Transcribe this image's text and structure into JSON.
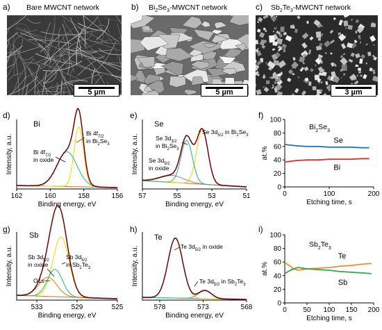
{
  "figure": {
    "panels": [
      {
        "letter": "a)",
        "title_parts": [
          "Bare MWCNT network"
        ],
        "scale": "5 µm"
      },
      {
        "letter": "b)",
        "title_parts": [
          "Bi",
          "2",
          "Se",
          "3",
          "-MWCNT network"
        ],
        "scale": "5 µm"
      },
      {
        "letter": "c)",
        "title_parts": [
          "Sb",
          "2",
          "Te",
          "3",
          "-MWCNT network"
        ],
        "scale": "3 µm"
      }
    ]
  },
  "chart_data": [
    {
      "id": "d",
      "type": "line",
      "letter": "d)",
      "element": "Bi",
      "xlabel": "Binding energy, eV",
      "ylabel": "Intensity, a.u.",
      "xlim": [
        162,
        156
      ],
      "xticks": [
        162,
        160,
        158,
        156
      ],
      "annotations": [
        [
          "Bi 4f",
          "7/2",
          ""
        ],
        [
          "in Bi",
          "2",
          "Se",
          "3"
        ],
        [
          "Bi 4f",
          "7/2",
          ""
        ],
        [
          "in oxide"
        ]
      ],
      "peaks": [
        {
          "center": 158.3,
          "height": 0.86,
          "width": 0.28,
          "color": "#e8d800"
        },
        {
          "center": 159.0,
          "height": 0.5,
          "width": 0.6,
          "color": "#22b08c"
        }
      ],
      "background": {
        "left": 0.05,
        "right": 0.02,
        "color": "#c9732c"
      }
    },
    {
      "id": "e",
      "type": "line",
      "letter": "e)",
      "element": "Se",
      "xlabel": "Binding energy, eV",
      "ylabel": "Intensity, a.u.",
      "xlim": [
        57,
        51
      ],
      "xticks": [
        57,
        55,
        53,
        51
      ],
      "annotations": [
        [
          "Se 3d",
          "3/2",
          ""
        ],
        [
          "in Bi",
          "2",
          "Se",
          "3"
        ],
        [
          "Se 3d",
          "5/2",
          ""
        ],
        [
          "in oxide"
        ],
        [
          "Se 3d",
          "5/2",
          " in Bi",
          "2",
          "Se",
          "3"
        ]
      ],
      "peaks": [
        {
          "center": 53.55,
          "height": 0.78,
          "width": 0.33,
          "color": "#e8d800"
        },
        {
          "center": 54.45,
          "height": 0.62,
          "width": 0.33,
          "color": "#22b08c"
        },
        {
          "center": 55.3,
          "height": 0.1,
          "width": 0.7,
          "color": "#7a8a8a"
        }
      ],
      "background": {
        "left": 0.12,
        "right": 0.03,
        "color": "#c9732c"
      }
    },
    {
      "id": "f",
      "type": "line",
      "letter": "f)",
      "title": [
        "Bi",
        "2",
        "Se",
        "3"
      ],
      "xlabel": "Etching time, s",
      "ylabel": "at.%",
      "xlim": [
        0,
        200
      ],
      "ylim": [
        0,
        100
      ],
      "xticks": [
        0,
        100,
        200
      ],
      "yticks": [
        0,
        20,
        40,
        60,
        80,
        100
      ],
      "series": [
        {
          "name": "Se",
          "color": "#1f77c4",
          "x": [
            0,
            25,
            50,
            75,
            100,
            125,
            150,
            175,
            190
          ],
          "y": [
            63,
            61,
            60,
            60,
            59,
            59,
            59,
            58,
            58
          ]
        },
        {
          "name": "Bi",
          "color": "#e03030",
          "x": [
            0,
            25,
            50,
            75,
            100,
            125,
            150,
            175,
            190
          ],
          "y": [
            37,
            39,
            40,
            40,
            41,
            41,
            41,
            42,
            42
          ]
        }
      ]
    },
    {
      "id": "g",
      "type": "line",
      "letter": "g)",
      "element": "Sb",
      "xlabel": "Binding energy, eV",
      "ylabel": "Intensity, a.u.",
      "xlim": [
        535,
        525
      ],
      "xticks": [
        533,
        529,
        525
      ],
      "annotations": [
        [
          "Sb 3d",
          "5/2",
          ""
        ],
        [
          "in oxide"
        ],
        [
          "Sb 3d",
          "5/2",
          ""
        ],
        [
          "in Sb",
          "2",
          "Te",
          "3"
        ],
        [
          "O1s"
        ]
      ],
      "peaks": [
        {
          "center": 530.6,
          "height": 0.88,
          "width": 0.8,
          "color": "#e8d800"
        },
        {
          "center": 531.2,
          "height": 0.4,
          "width": 0.75,
          "color": "#22b08c"
        },
        {
          "center": 531.9,
          "height": 0.28,
          "width": 0.9,
          "color": "#e07a00"
        }
      ],
      "background": {
        "left": 0.07,
        "right": 0.02,
        "color": "#c9732c"
      }
    },
    {
      "id": "h",
      "type": "line",
      "letter": "h)",
      "element": "Te",
      "xlabel": "Binding energy, eV",
      "ylabel": "Intensity, a.u.",
      "xlim": [
        580,
        568
      ],
      "xticks": [
        578,
        573,
        568
      ],
      "annotations": [
        [
          "Te 3d",
          "5/2",
          " in oxide"
        ],
        [
          "Te 3d",
          "5/2",
          " in Sb",
          "2",
          "Te",
          "3"
        ]
      ],
      "peaks": [
        {
          "center": 576.2,
          "height": 0.88,
          "width": 0.85,
          "color": "#e8d800"
        },
        {
          "center": 572.8,
          "height": 0.12,
          "width": 0.75,
          "color": "#22b08c"
        }
      ],
      "background": {
        "left": 0.04,
        "right": 0.01,
        "color": "#c9732c"
      }
    },
    {
      "id": "i",
      "type": "line",
      "letter": "i)",
      "title": [
        "Sb",
        "2",
        "Te",
        "3"
      ],
      "xlabel": "Etching time, s",
      "ylabel": "at.%",
      "xlim": [
        0,
        200
      ],
      "ylim": [
        0,
        100
      ],
      "xticks": [
        0,
        50,
        100,
        150,
        200
      ],
      "yticks": [
        0,
        20,
        40,
        60,
        80,
        100
      ],
      "series": [
        {
          "name": "Te",
          "color": "#f08c30",
          "x": [
            0,
            10,
            20,
            30,
            40,
            50,
            75,
            100,
            125,
            150,
            175,
            195
          ],
          "y": [
            59,
            55,
            50,
            48,
            49,
            50,
            51,
            52,
            54,
            55,
            57,
            58
          ]
        },
        {
          "name": "Sb",
          "color": "#2aa84a",
          "x": [
            0,
            10,
            20,
            30,
            40,
            50,
            75,
            100,
            125,
            150,
            175,
            195
          ],
          "y": [
            43,
            47,
            50,
            52,
            51,
            50,
            49,
            48,
            46,
            45,
            44,
            43
          ]
        }
      ]
    }
  ]
}
